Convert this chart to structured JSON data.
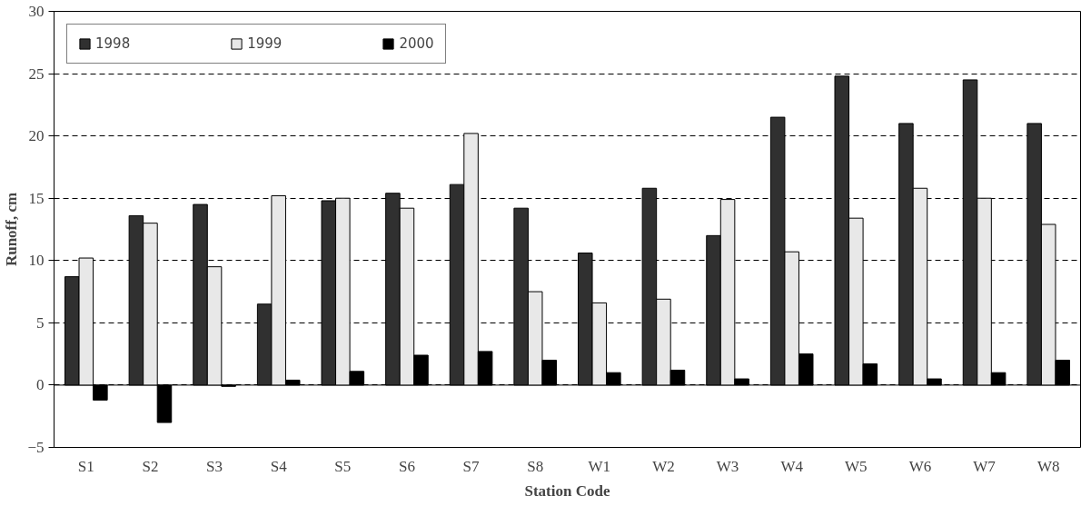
{
  "chart_data": {
    "type": "bar",
    "xlabel": "Station Code",
    "ylabel": "Runoff, cm",
    "categories": [
      "S1",
      "S2",
      "S3",
      "S4",
      "S5",
      "S6",
      "S7",
      "S8",
      "W1",
      "W2",
      "W3",
      "W4",
      "W5",
      "W6",
      "W7",
      "W8"
    ],
    "series": [
      {
        "name": "1998",
        "color": "#303030",
        "values": [
          8.7,
          13.6,
          14.5,
          6.5,
          14.8,
          15.4,
          16.1,
          14.2,
          10.6,
          15.8,
          12.0,
          21.5,
          24.8,
          21.0,
          24.5,
          21.0
        ]
      },
      {
        "name": "1999",
        "color": "#e8e8e8",
        "values": [
          10.2,
          13.0,
          9.5,
          15.2,
          15.0,
          14.2,
          20.2,
          7.5,
          6.6,
          6.9,
          14.9,
          10.7,
          13.4,
          15.8,
          15.0,
          12.9
        ]
      },
      {
        "name": "2000",
        "color": "#000000",
        "values": [
          -1.2,
          -3.0,
          -0.1,
          0.4,
          1.1,
          2.4,
          2.7,
          2.0,
          1.0,
          1.2,
          0.5,
          2.5,
          1.7,
          0.5,
          1.0,
          2.0
        ]
      }
    ],
    "ylim": [
      -5,
      30
    ],
    "yticks": [
      -5,
      0,
      5,
      10,
      15,
      20,
      25,
      30
    ],
    "grid": "y",
    "legend": "top left"
  }
}
